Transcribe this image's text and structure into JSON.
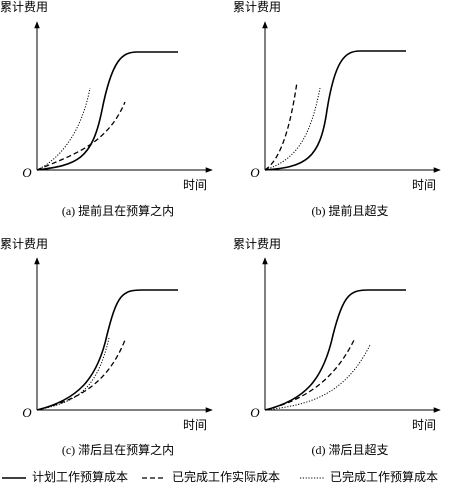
{
  "panels": [
    {
      "y_label": "累计费用",
      "x_label": "时间",
      "origin": "O",
      "caption": "(a) 提前且在预算之内"
    },
    {
      "y_label": "累计费用",
      "x_label": "时间",
      "origin": "O",
      "caption": "(b) 提前且超支"
    },
    {
      "y_label": "累计费用",
      "x_label": "时间",
      "origin": "O",
      "caption": "(c) 滞后且在预算之内"
    },
    {
      "y_label": "累计费用",
      "x_label": "时间",
      "origin": "O",
      "caption": "(d) 滞后且超支"
    }
  ],
  "legend": [
    "计划工作预算成本",
    "已完成工作实际成本",
    "已完成工作预算成本"
  ]
}
